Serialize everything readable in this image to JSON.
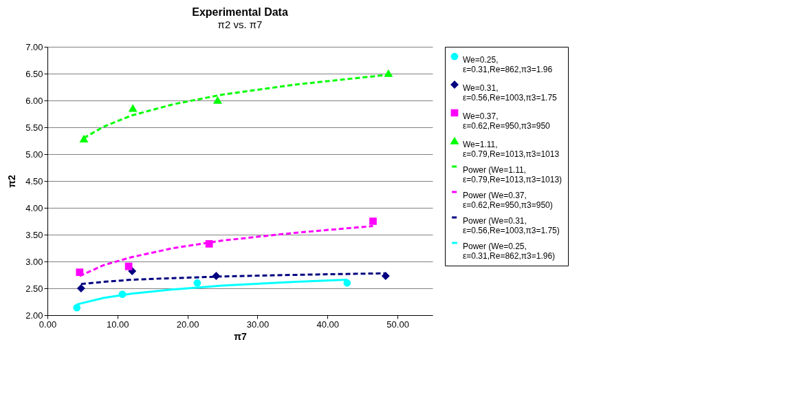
{
  "chart_data": {
    "type": "scatter",
    "title": "Experimental Data",
    "subtitle": "π2 vs. π7",
    "xlabel": "π7",
    "ylabel": "π2",
    "xlim": [
      0,
      55
    ],
    "xticks": [
      {
        "value": 0,
        "label": "0.00"
      },
      {
        "value": 10,
        "label": "10.00"
      },
      {
        "value": 20,
        "label": "20.00"
      },
      {
        "value": 30,
        "label": "30.00"
      },
      {
        "value": 40,
        "label": "40.00"
      },
      {
        "value": 50,
        "label": "50.00"
      }
    ],
    "ylim": [
      2,
      7
    ],
    "yticks": [
      {
        "value": 2,
        "label": "2.00"
      },
      {
        "value": 2.5,
        "label": "2.50"
      },
      {
        "value": 3,
        "label": "3.00"
      },
      {
        "value": 3.5,
        "label": "3.50"
      },
      {
        "value": 4,
        "label": "4.00"
      },
      {
        "value": 4.5,
        "label": "4.50"
      },
      {
        "value": 5,
        "label": "5.00"
      },
      {
        "value": 5.5,
        "label": "5.50"
      },
      {
        "value": 6,
        "label": "6.00"
      },
      {
        "value": 6.5,
        "label": "6.50"
      },
      {
        "value": 7,
        "label": "7.00"
      }
    ],
    "grid": "y",
    "legend": "right",
    "series": [
      {
        "name": "We=0.25, ε=0.31,Re=862,π3=1.96",
        "marker": "circle",
        "color": "#00ffff",
        "x": [
          4.2,
          10.7,
          21.4,
          42.8
        ],
        "values": [
          2.14,
          2.39,
          2.6,
          2.6
        ]
      },
      {
        "name": "We=0.31, ε=0.56,Re=1003,π3=1.75",
        "marker": "diamond",
        "color": "#000080",
        "x": [
          4.8,
          12.1,
          24.1,
          48.3
        ],
        "values": [
          2.5,
          2.82,
          2.73,
          2.73
        ]
      },
      {
        "name": "We=0.37, ε=0.62,Re=950,π3=950",
        "marker": "square",
        "color": "#ff00ff",
        "x": [
          4.6,
          11.6,
          23.1,
          46.5
        ],
        "values": [
          2.8,
          2.91,
          3.33,
          3.75
        ]
      },
      {
        "name": "We=1.11, ε=0.79,Re=1013,π3=1013",
        "marker": "triangle",
        "color": "#00ff00",
        "x": [
          5.2,
          12.2,
          24.3,
          48.7
        ],
        "values": [
          5.28,
          5.85,
          6.0,
          6.5
        ]
      },
      {
        "name": "Power (We=1.11, ε=0.79,Re=1013,π3=1013)",
        "type": "line",
        "line_style": "dashed",
        "color": "#00ff00",
        "x": [
          5.2,
          8,
          12,
          18,
          25,
          35,
          48.7
        ],
        "values": [
          5.3,
          5.51,
          5.72,
          5.93,
          6.11,
          6.29,
          6.48
        ]
      },
      {
        "name": "Power (We=0.37, ε=0.62,Re=950,π3=950)",
        "type": "line",
        "line_style": "dashed",
        "color": "#ff00ff",
        "x": [
          4.6,
          8,
          12,
          18,
          25,
          35,
          46.5
        ],
        "values": [
          2.73,
          2.93,
          3.08,
          3.25,
          3.39,
          3.53,
          3.66
        ]
      },
      {
        "name": "Power (We=0.31, ε=0.56,Re=1003,π3=1.75)",
        "type": "line",
        "line_style": "dashed",
        "color": "#000080",
        "x": [
          4.8,
          8,
          12,
          18,
          25,
          35,
          48.3
        ],
        "values": [
          2.58,
          2.62,
          2.66,
          2.69,
          2.72,
          2.75,
          2.78
        ]
      },
      {
        "name": "Power (We=0.25, ε=0.31,Re=862,π3=1.96)",
        "type": "line",
        "line_style": "solid",
        "color": "#00ffff",
        "x": [
          4.2,
          8,
          12,
          18,
          25,
          35,
          42.8
        ],
        "values": [
          2.2,
          2.32,
          2.4,
          2.48,
          2.55,
          2.62,
          2.66
        ]
      }
    ]
  }
}
